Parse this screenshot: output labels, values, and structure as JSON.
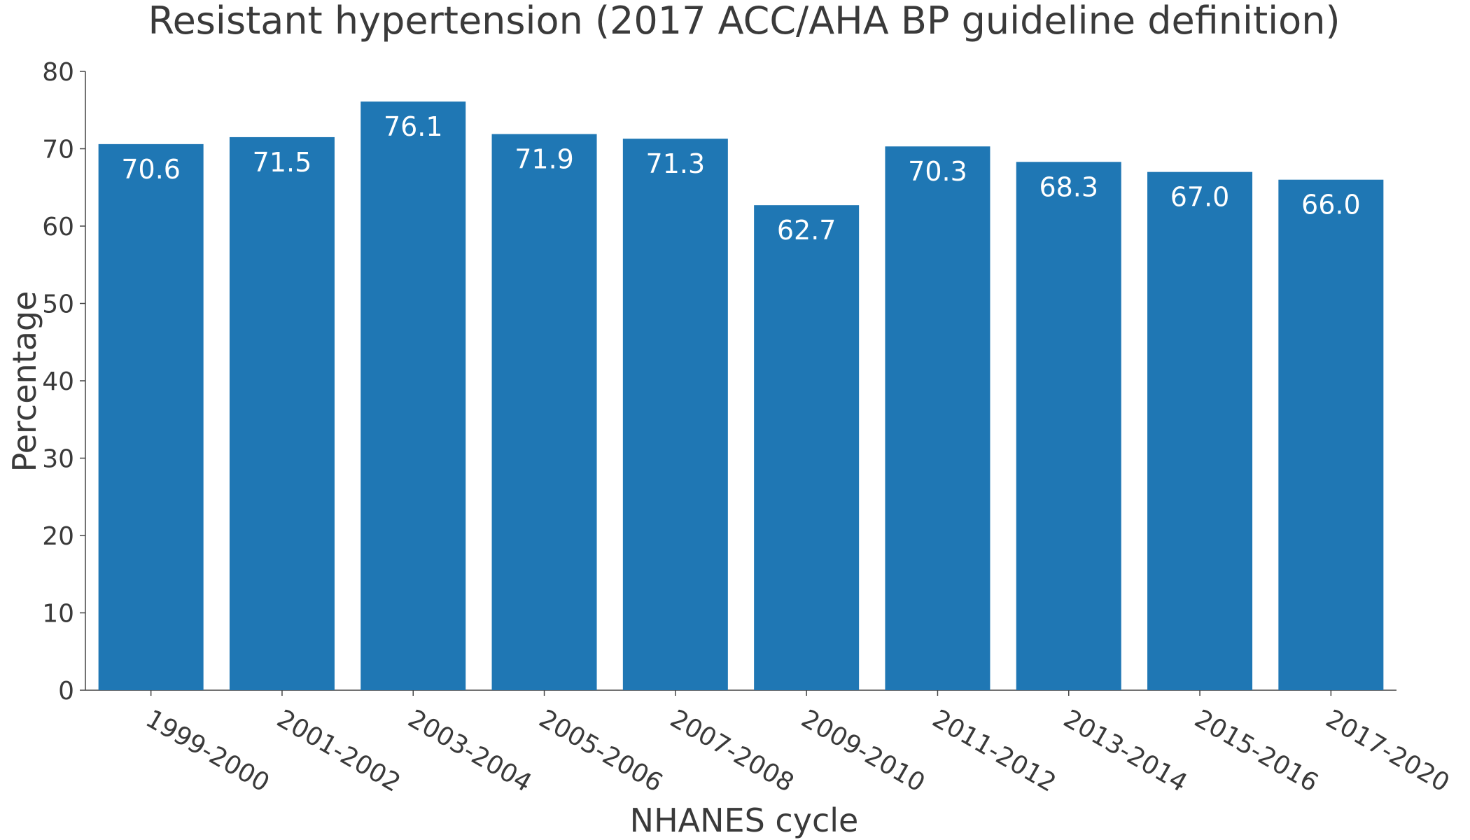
{
  "chart_data": {
    "type": "bar",
    "title": "Resistant hypertension (2017 ACC/AHA BP guideline definition)",
    "xlabel": "NHANES cycle",
    "ylabel": "Percentage",
    "categories": [
      "1999-2000",
      "2001-2002",
      "2003-2004",
      "2005-2006",
      "2007-2008",
      "2009-2010",
      "2011-2012",
      "2013-2014",
      "2015-2016",
      "2017-2020"
    ],
    "values": [
      70.6,
      71.5,
      76.1,
      71.9,
      71.3,
      62.7,
      70.3,
      68.3,
      67.0,
      66.0
    ],
    "value_labels": [
      "70.6",
      "71.5",
      "76.1",
      "71.9",
      "71.3",
      "62.7",
      "70.3",
      "68.3",
      "67.0",
      "66.0"
    ],
    "ylim": [
      0,
      80
    ],
    "yticks": [
      0,
      10,
      20,
      30,
      40,
      50,
      60,
      70,
      80
    ],
    "grid": false,
    "legend": "none",
    "bar_color": "#1f77b4",
    "text_color": "#3a3a3a",
    "axis_color": "#444444"
  }
}
